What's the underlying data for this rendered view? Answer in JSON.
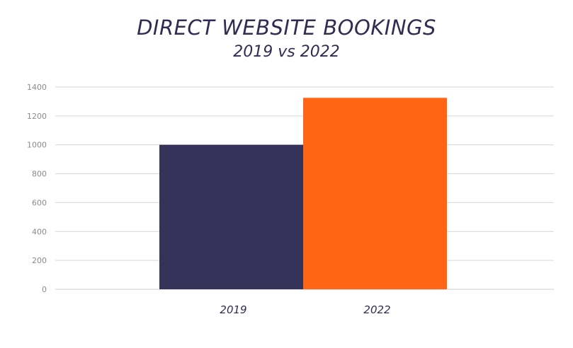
{
  "chart_data": {
    "type": "bar",
    "title": "DIRECT WEBSITE BOOKINGS",
    "subtitle": "2019 vs 2022",
    "categories": [
      "2019",
      "2022"
    ],
    "values": [
      1000,
      1325
    ],
    "ylim": [
      0,
      1400
    ],
    "yticks": [
      "0",
      "200",
      "400",
      "600",
      "800",
      "1000",
      "1200",
      "1400"
    ],
    "ytick_values": [
      0,
      200,
      400,
      600,
      800,
      1000,
      1200,
      1400
    ],
    "grid": true,
    "legend": "none",
    "colors": [
      "#35335a",
      "#ff6515"
    ],
    "grid_color": "#d6d6d6",
    "text_color": "#2f2d52"
  }
}
